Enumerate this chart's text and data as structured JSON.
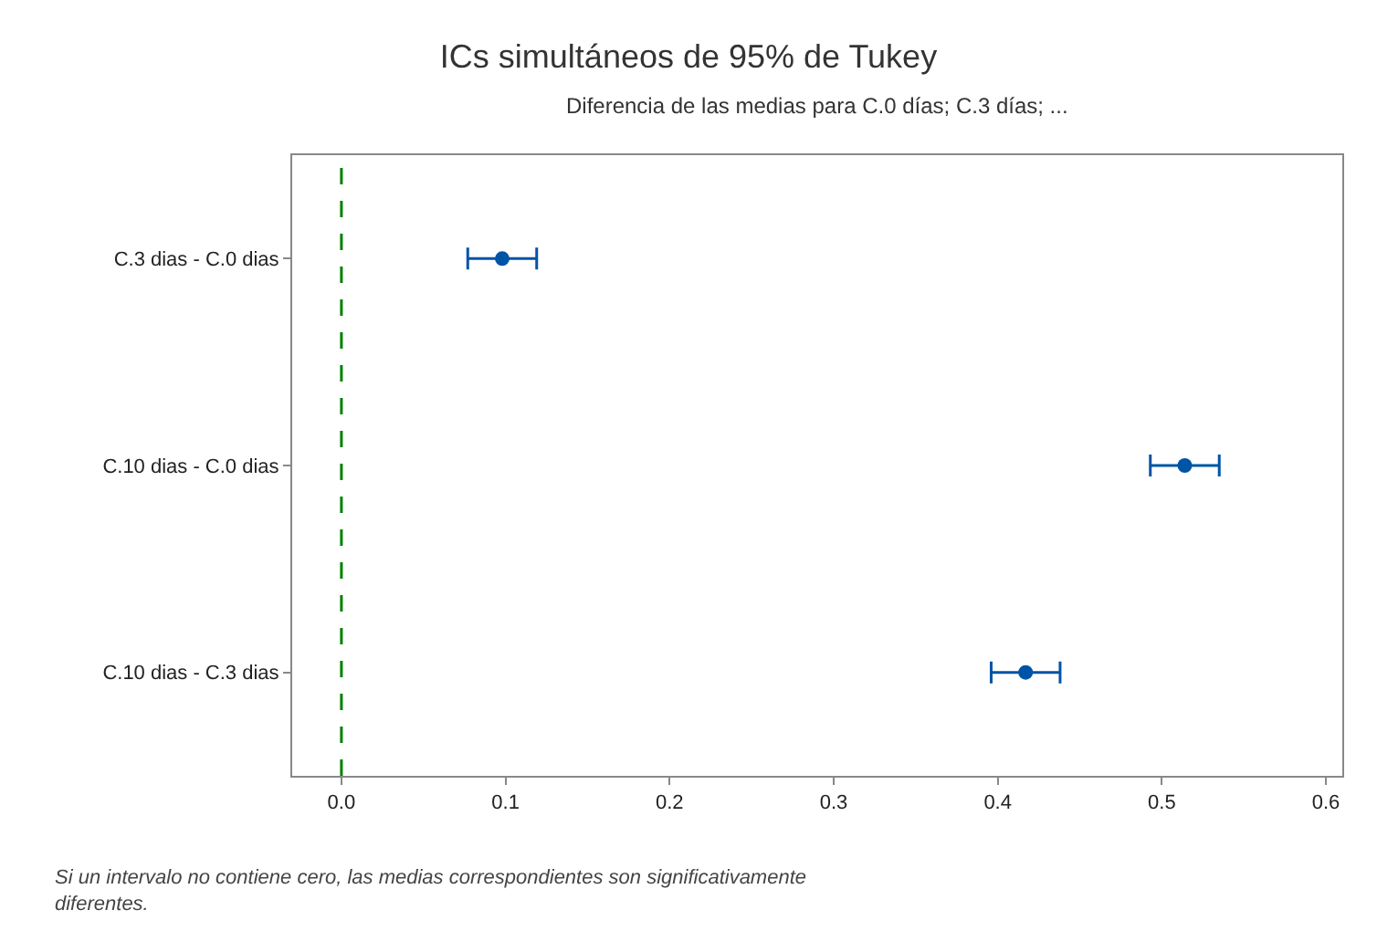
{
  "chart_data": {
    "type": "scatter",
    "orientation": "horizontal",
    "title": "ICs simultáneos de 95% de Tukey",
    "subtitle": "Diferencia de las medias para C.0 días; C.3 días; ...",
    "categories": [
      "C.3 dias - C.0 dias",
      "C.10 dias - C.0 dias",
      "C.10 dias - C.3 dias"
    ],
    "values": [
      0.098,
      0.514,
      0.417
    ],
    "errors": [
      0.021,
      0.021,
      0.021
    ],
    "color": "#0054a6",
    "marker": "circle",
    "xlim": [
      -0.03,
      0.61
    ],
    "xticks": [
      {
        "value": 0,
        "label": "0.0"
      },
      0.1,
      0.2,
      0.3,
      0.4,
      0.5,
      0.6
    ],
    "ref_lines": [
      {
        "axis": "x",
        "value": 0,
        "color": "#008000",
        "line_style": "dashed"
      }
    ],
    "grid": false,
    "legend": false,
    "annotations": [
      "Si un intervalo no contiene cero, las medias correspondientes son significativamente diferentes."
    ]
  }
}
